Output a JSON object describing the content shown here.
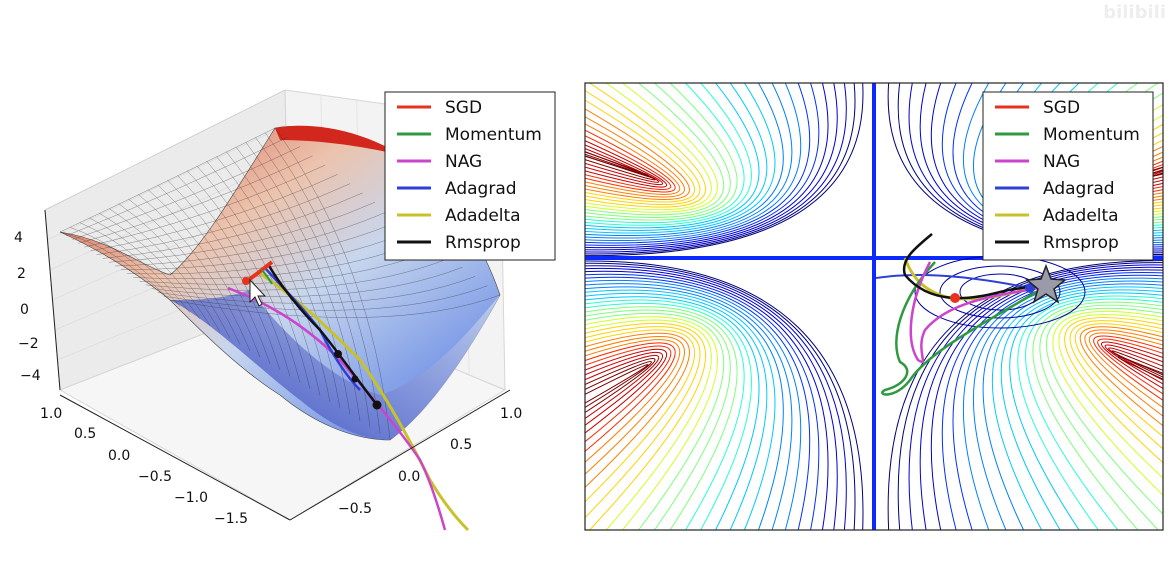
{
  "chart_data": [
    {
      "type": "surface3d",
      "description_of_function": "saddle surface z = y^2 - x^2",
      "z_ticks": [
        "4",
        "2",
        "0",
        "−2",
        "−4"
      ],
      "x_ticks": [
        "1.0",
        "0.5",
        "0.0",
        "−0.5",
        "−1.0",
        "−1.5"
      ],
      "y_ticks": [
        "1.0",
        "0.5",
        "0.0",
        "−0.5"
      ],
      "colormap": "coolwarm",
      "legend": [
        "SGD",
        "Momentum",
        "NAG",
        "Adagrad",
        "Adadelta",
        "Rmsprop"
      ],
      "legend_placement": "top-right"
    },
    {
      "type": "contour",
      "description_of_function": "Beale-like contour landscape with saddle",
      "colormap": "jet",
      "legend": [
        "SGD",
        "Momentum",
        "NAG",
        "Adagrad",
        "Adadelta",
        "Rmsprop"
      ],
      "legend_placement": "top-right",
      "minimum_marker": "star"
    }
  ],
  "series_colors": {
    "SGD": "#e8321e",
    "Momentum": "#2e9a3f",
    "NAG": "#cc44cc",
    "Adagrad": "#2e3fd6",
    "Adadelta": "#c8c22a",
    "Rmsprop": "#111111"
  },
  "watermark": "bilibili"
}
